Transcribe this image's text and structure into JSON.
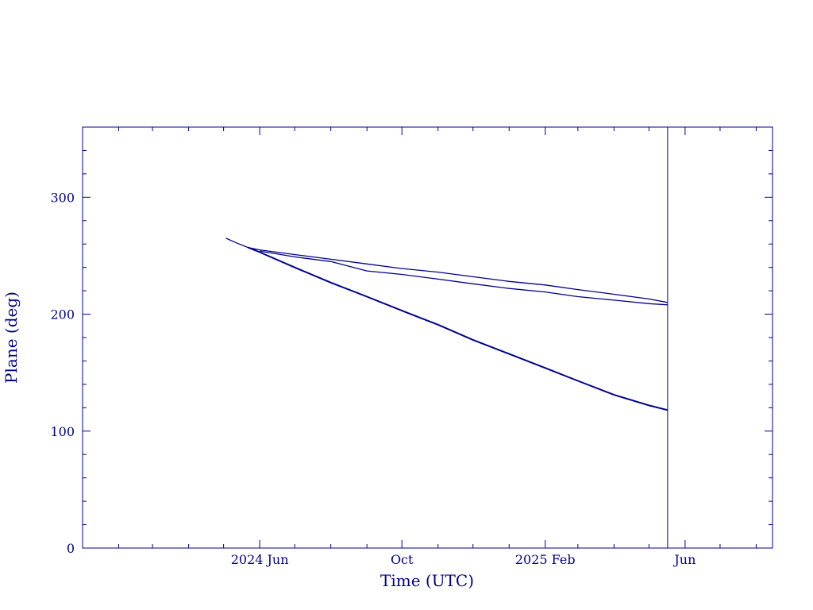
{
  "chart_data": {
    "type": "line",
    "title": "",
    "xlabel": "Time (UTC)",
    "ylabel": "Plane (deg)",
    "x_axis": "date",
    "xlim": [
      "2024-01-01",
      "2025-08-15"
    ],
    "ylim": [
      0,
      360
    ],
    "grid": false,
    "x_ticks": [
      {
        "date": "2024-06-01",
        "label": "2024 Jun"
      },
      {
        "date": "2024-10-01",
        "label": "Oct"
      },
      {
        "date": "2025-02-01",
        "label": "2025 Feb"
      },
      {
        "date": "2025-06-01",
        "label": "Jun"
      }
    ],
    "x_minor_ticks": [
      "2024-02-01",
      "2024-03-01",
      "2024-04-01",
      "2024-05-01",
      "2024-07-01",
      "2024-08-01",
      "2024-09-01",
      "2024-11-01",
      "2024-12-01",
      "2025-01-01",
      "2025-03-01",
      "2025-04-01",
      "2025-05-01",
      "2025-07-01",
      "2025-08-01"
    ],
    "y_ticks": [
      0,
      100,
      200,
      300
    ],
    "y_minor_step": 20,
    "vertical_marker": "2025-05-17",
    "color": "#00008b",
    "series": [
      {
        "x": [
          "2024-05-03",
          "2024-05-12",
          "2024-05-22",
          "2024-06-01",
          "2024-07-01",
          "2024-08-01",
          "2024-09-01",
          "2024-10-01",
          "2024-11-01",
          "2024-12-01",
          "2025-01-01",
          "2025-02-01",
          "2025-03-01",
          "2025-04-01",
          "2025-05-01",
          "2025-05-17"
        ],
        "y": [
          265,
          261,
          257,
          255,
          251,
          247,
          243,
          239,
          236,
          232,
          228,
          225,
          221,
          217,
          213,
          210
        ]
      },
      {
        "x": [
          "2024-06-01",
          "2024-07-01",
          "2024-08-01",
          "2024-09-01",
          "2024-10-01",
          "2024-11-01",
          "2024-12-01",
          "2025-01-01",
          "2025-02-01",
          "2025-03-01",
          "2025-04-01",
          "2025-05-01",
          "2025-05-17"
        ],
        "y": [
          254,
          249,
          245,
          237,
          234,
          230,
          226,
          222,
          219,
          215,
          212,
          209,
          208
        ]
      },
      {
        "x": [
          "2024-05-22",
          "2024-06-01",
          "2024-07-01",
          "2024-08-01",
          "2024-09-01",
          "2024-10-01",
          "2024-11-01",
          "2024-12-01",
          "2025-01-01",
          "2025-02-01",
          "2025-03-01",
          "2025-04-01",
          "2025-05-01",
          "2025-05-17"
        ],
        "y": [
          257,
          253,
          240,
          227,
          215,
          203,
          191,
          178,
          166,
          154,
          143,
          131,
          122,
          118
        ]
      }
    ]
  }
}
